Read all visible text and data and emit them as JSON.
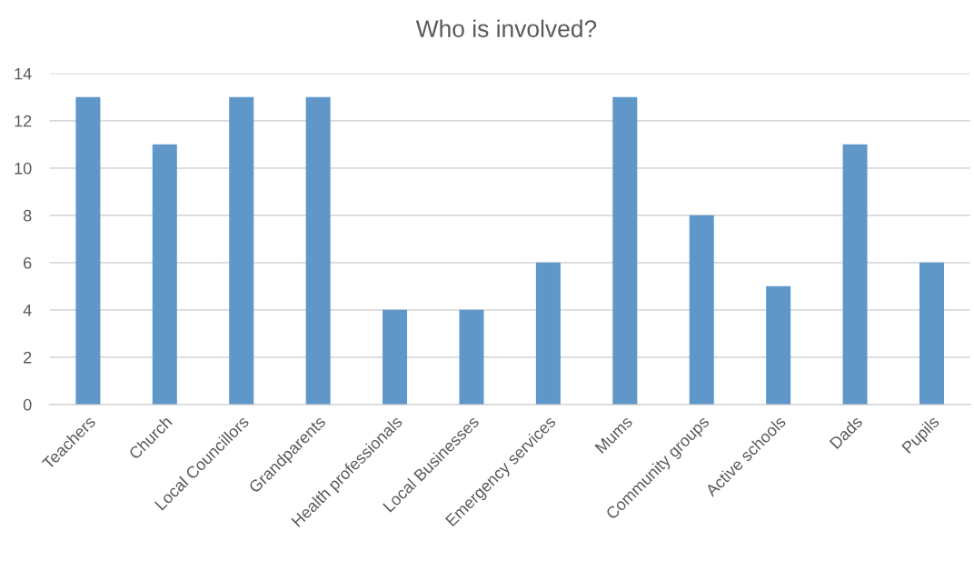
{
  "chart_data": {
    "type": "bar",
    "title": "Who is involved?",
    "categories": [
      "Teachers",
      "Church",
      "Local Councillors",
      "Grandparents",
      "Health professionals",
      "Local Businesses",
      "Emergency services",
      "Mums",
      "Community groups",
      "Active schools",
      "Dads",
      "Pupils"
    ],
    "values": [
      13,
      11,
      13,
      13,
      4,
      4,
      6,
      13,
      8,
      5,
      11,
      6
    ],
    "color": "#5f97c9",
    "ylim": [
      0,
      14
    ],
    "yticks": [
      0,
      2,
      4,
      6,
      8,
      10,
      12,
      14
    ],
    "grid": "y",
    "legend": false
  }
}
